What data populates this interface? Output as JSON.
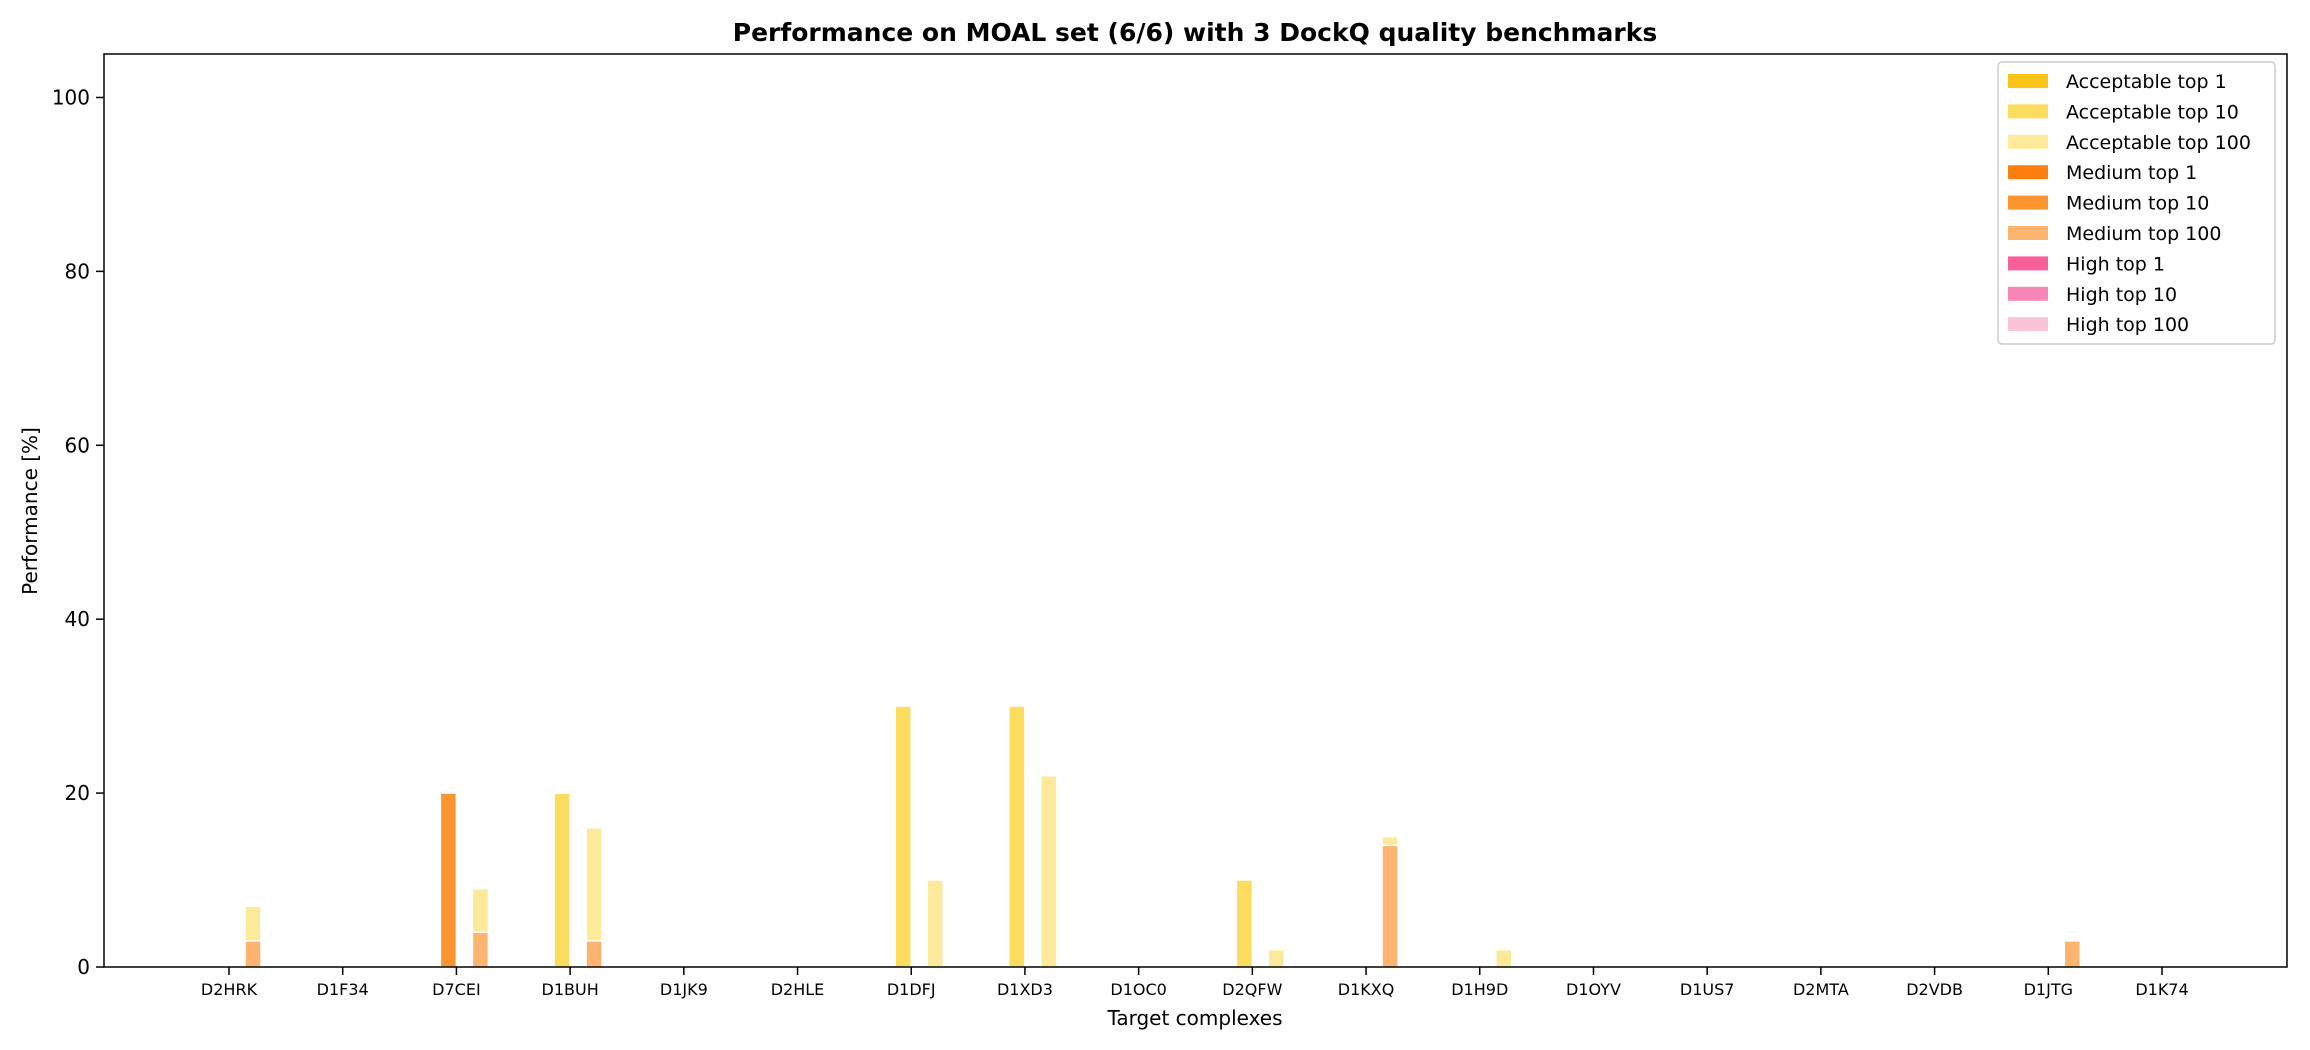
{
  "chart_data": {
    "type": "bar",
    "title": "Performance on MOAL set (6/6) with 3 DockQ quality benchmarks",
    "xlabel": "Target complexes",
    "ylabel": "Performance [%]",
    "ylim": [
      0,
      105
    ],
    "yticks": [
      0,
      20,
      40,
      60,
      80,
      100
    ],
    "grid": false,
    "legend_position": "top-right",
    "categories": [
      "D2HRK",
      "D1F34",
      "D7CEI",
      "D1BUH",
      "D1JK9",
      "D2HLE",
      "D1DFJ",
      "D1XD3",
      "D1OC0",
      "D2QFW",
      "D1KXQ",
      "D1H9D",
      "D1OYV",
      "D1US7",
      "D2MTA",
      "D2VDB",
      "D1JTG",
      "D1K74"
    ],
    "series": [
      {
        "name": "Acceptable top 1",
        "color": "#f9c518",
        "values": [
          0,
          0,
          0,
          0,
          0,
          0,
          0,
          0,
          0,
          0,
          0,
          0,
          0,
          0,
          0,
          0,
          0,
          0
        ]
      },
      {
        "name": "Acceptable top 10",
        "color": "#fcdc5c",
        "values": [
          0,
          0,
          0,
          20,
          0,
          0,
          30,
          30,
          0,
          10,
          0,
          0,
          0,
          0,
          0,
          0,
          0,
          0
        ]
      },
      {
        "name": "Acceptable top 100",
        "color": "#fde99a",
        "values": [
          7,
          0,
          9,
          16,
          0,
          0,
          10,
          22,
          0,
          2,
          15,
          2,
          0,
          0,
          0,
          0,
          0,
          0
        ]
      },
      {
        "name": "Medium top 1",
        "color": "#fd7f0e",
        "values": [
          0,
          0,
          0,
          0,
          0,
          0,
          0,
          0,
          0,
          0,
          0,
          0,
          0,
          0,
          0,
          0,
          0,
          0
        ]
      },
      {
        "name": "Medium top 10",
        "color": "#fc9430",
        "values": [
          0,
          0,
          20,
          0,
          0,
          0,
          0,
          0,
          0,
          0,
          0,
          0,
          0,
          0,
          0,
          0,
          0,
          0
        ]
      },
      {
        "name": "Medium top 100",
        "color": "#fcb46e",
        "values": [
          3,
          0,
          4,
          3,
          0,
          0,
          0,
          0,
          0,
          0,
          14,
          0,
          0,
          0,
          0,
          0,
          3,
          0
        ]
      },
      {
        "name": "High top 1",
        "color": "#f7609b",
        "values": [
          0,
          0,
          0,
          0,
          0,
          0,
          0,
          0,
          0,
          0,
          0,
          0,
          0,
          0,
          0,
          0,
          0,
          0
        ]
      },
      {
        "name": "High top 10",
        "color": "#f986b6",
        "values": [
          0,
          0,
          0,
          0,
          0,
          0,
          0,
          0,
          0,
          0,
          0,
          0,
          0,
          0,
          0,
          0,
          0,
          0
        ]
      },
      {
        "name": "High top 100",
        "color": "#fbc3da",
        "values": [
          0,
          0,
          0,
          0,
          0,
          0,
          0,
          0,
          0,
          0,
          0,
          0,
          0,
          0,
          0,
          0,
          0,
          0
        ]
      }
    ]
  }
}
